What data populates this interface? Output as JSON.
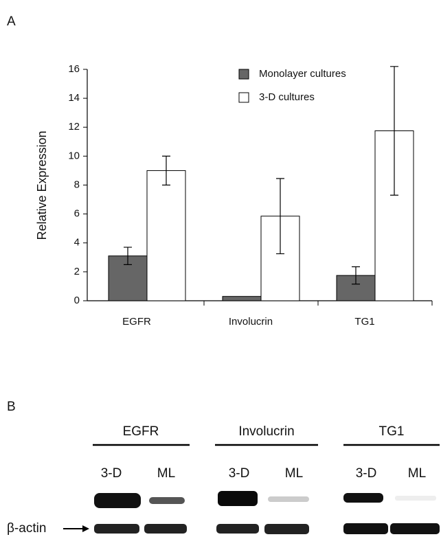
{
  "panel_labels": [
    "A",
    "B"
  ],
  "chart_data": {
    "type": "bar",
    "ylabel": "Relative Expression",
    "categories": [
      "EGFR",
      "Involucrin",
      "TG1"
    ],
    "series": [
      {
        "name": "Monolayer cultures",
        "color": "#666666",
        "values": [
          3.1,
          0.3,
          1.75
        ],
        "errors": [
          0.6,
          null,
          0.6
        ]
      },
      {
        "name": "3-D cultures",
        "color": "#ffffff",
        "values": [
          9.0,
          5.85,
          11.75
        ],
        "errors": [
          1.0,
          2.6,
          4.45
        ]
      }
    ],
    "ylim": [
      0,
      16
    ],
    "yticks": [
      0,
      2,
      4,
      6,
      8,
      10,
      12,
      14,
      16
    ],
    "grid": false,
    "legend": "top"
  },
  "blot": {
    "genes": [
      "EGFR",
      "Involucrin",
      "TG1"
    ],
    "lanes": [
      "3-D",
      "ML",
      "3-D",
      "ML",
      "3-D",
      "ML"
    ],
    "loading_control": "β-actin"
  }
}
